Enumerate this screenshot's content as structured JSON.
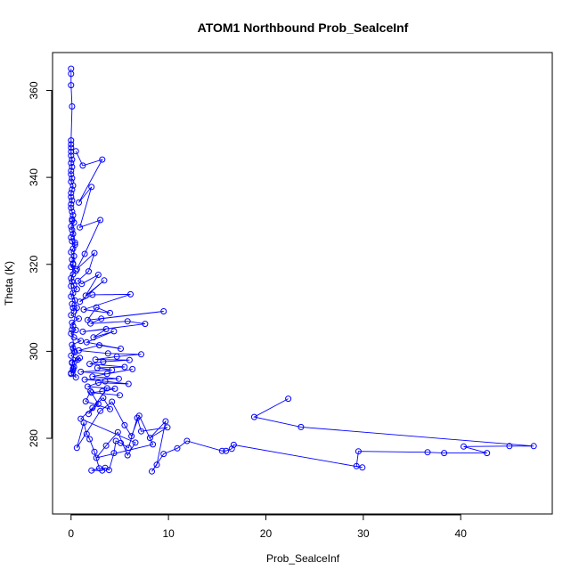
{
  "chart_data": {
    "type": "scatter",
    "title": "ATOM1 Northbound Prob_SealceInf",
    "xlabel": "Prob_SealceInf",
    "ylabel": "Theta (K)",
    "xlim": [
      -1.9,
      49.4
    ],
    "ylim": [
      262.6,
      368.7
    ],
    "x_ticks": [
      0,
      10,
      20,
      30,
      40
    ],
    "y_ticks": [
      280,
      300,
      320,
      340,
      360
    ],
    "series_color": "#0000ff",
    "grid": false,
    "legend": "none",
    "series": [
      {
        "x": [
          0.0,
          0.0,
          0.0,
          0.1,
          0.0,
          0.0,
          0.0,
          0.0,
          0.0,
          0.1,
          0.0,
          0.1,
          0.0,
          0.0,
          0.1,
          0.0,
          0.2,
          0.1,
          0.0,
          0.0,
          0.1,
          0.0,
          0.0,
          0.1,
          0.2,
          0.1,
          0.3,
          0.0,
          0.1,
          0.2,
          0.0,
          0.1,
          0.4,
          0.2,
          0.0,
          0.3,
          0.1,
          0.2,
          0.0,
          0.5,
          0.2,
          0.0,
          0.1,
          0.3,
          0.6,
          0.2,
          0.0,
          0.4,
          0.1,
          0.2,
          0.3,
          0.0,
          0.8,
          0.1,
          0.2,
          0.5,
          0.0,
          0.3,
          1.0,
          0.1,
          0.2,
          0.4,
          0.0,
          0.7,
          0.1,
          0.3,
          0.2,
          0.0,
          0.5,
          0.1,
          0.9,
          0.2,
          0.0,
          0.3,
          0.1,
          0.6,
          0.0,
          0.2,
          0.4,
          0.1
        ],
        "y": [
          365.0,
          363.8,
          361.2,
          356.3,
          348.5,
          347.6,
          346.8,
          345.9,
          345.0,
          344.1,
          343.3,
          342.4,
          341.5,
          340.7,
          339.8,
          339.0,
          338.1,
          337.2,
          336.4,
          335.5,
          334.7,
          333.8,
          333.0,
          332.1,
          331.3,
          330.4,
          329.6,
          328.7,
          327.9,
          327.0,
          326.2,
          325.3,
          324.5,
          323.6,
          322.8,
          321.9,
          321.1,
          320.2,
          319.4,
          318.5,
          317.7,
          316.8,
          316.0,
          315.1,
          314.3,
          313.4,
          312.6,
          311.7,
          310.9,
          310.0,
          309.2,
          308.3,
          307.5,
          306.6,
          305.8,
          304.9,
          304.1,
          303.2,
          302.4,
          301.5,
          300.7,
          299.8,
          299.0,
          298.1,
          297.3,
          296.4,
          295.6,
          294.8,
          294.0,
          297.5,
          298.5,
          296.0,
          295.0,
          300.0,
          305.0,
          310.0,
          315.0,
          320.0,
          325.0,
          330.0
        ]
      },
      {
        "x": [
          0.5,
          1.2,
          3.2,
          0.8,
          2.1,
          0.9,
          3.0,
          1.4,
          0.6,
          2.4,
          1.8,
          0.7,
          1.1,
          2.8,
          1.5,
          3.4,
          0.9,
          2.2,
          6.1,
          1.3,
          4.0,
          2.6,
          1.7,
          9.5,
          3.1,
          2.0,
          5.8,
          7.6,
          1.2,
          3.6,
          2.3,
          4.4,
          1.6,
          5.1,
          2.9,
          0.8,
          3.8,
          7.2,
          4.7,
          2.5,
          6.0,
          3.3,
          1.9,
          5.5,
          2.7,
          4.2,
          1.0,
          3.7,
          6.3,
          2.2,
          4.9,
          1.4,
          3.5,
          5.9,
          2.8,
          1.7,
          4.5,
          3.2,
          2.1,
          5.0
        ],
        "y": [
          346.0,
          342.7,
          344.1,
          334.2,
          337.8,
          328.5,
          330.2,
          322.4,
          318.9,
          322.6,
          318.4,
          316.2,
          315.5,
          317.6,
          312.8,
          316.3,
          311.4,
          313.0,
          313.1,
          309.6,
          308.8,
          310.1,
          307.2,
          309.2,
          307.5,
          306.4,
          306.9,
          306.3,
          304.5,
          305.1,
          303.2,
          304.6,
          302.1,
          300.6,
          301.4,
          300.2,
          299.5,
          299.3,
          298.8,
          298.1,
          298.0,
          297.6,
          297.1,
          296.4,
          296.2,
          295.7,
          295.3,
          294.8,
          295.9,
          294.2,
          293.7,
          293.5,
          293.1,
          292.5,
          292.8,
          291.9,
          291.4,
          290.8,
          290.5,
          289.9
        ]
      },
      {
        "x": [
          22.3,
          18.8,
          23.6,
          47.5,
          45.0,
          40.3,
          42.7,
          38.3,
          36.6,
          29.5,
          29.3,
          29.9,
          16.7,
          16.5,
          15.9,
          15.5,
          11.9,
          10.9,
          9.5,
          8.3,
          8.8,
          9.7,
          8.1,
          9.9,
          7.2,
          6.8,
          5.9,
          5.1,
          4.6,
          4.4,
          3.9,
          3.5,
          3.2,
          2.1,
          2.9,
          2.4,
          1.9,
          1.6,
          1.3,
          0.6,
          3.0,
          4.2,
          5.5,
          6.2,
          7.0,
          8.4,
          2.6,
          3.6,
          4.8,
          5.8,
          6.6,
          1.0,
          2.2,
          3.3,
          4.0,
          1.5,
          2.0,
          2.8,
          1.8,
          3.7
        ],
        "y": [
          289.1,
          284.9,
          282.6,
          278.2,
          278.2,
          278.1,
          276.6,
          276.6,
          276.8,
          277.0,
          273.6,
          273.3,
          278.5,
          277.6,
          277.1,
          277.1,
          279.4,
          277.7,
          276.4,
          272.4,
          273.9,
          283.9,
          280.1,
          282.5,
          281.6,
          284.7,
          277.8,
          278.9,
          279.4,
          276.6,
          272.7,
          273.2,
          272.6,
          272.6,
          273.1,
          276.9,
          279.8,
          281.0,
          283.6,
          277.8,
          286.3,
          288.4,
          283.0,
          280.5,
          285.2,
          278.6,
          275.5,
          278.3,
          281.4,
          276.1,
          279.0,
          284.5,
          287.0,
          289.3,
          286.7,
          288.5,
          290.8,
          287.9,
          285.6,
          291.5
        ]
      }
    ]
  }
}
